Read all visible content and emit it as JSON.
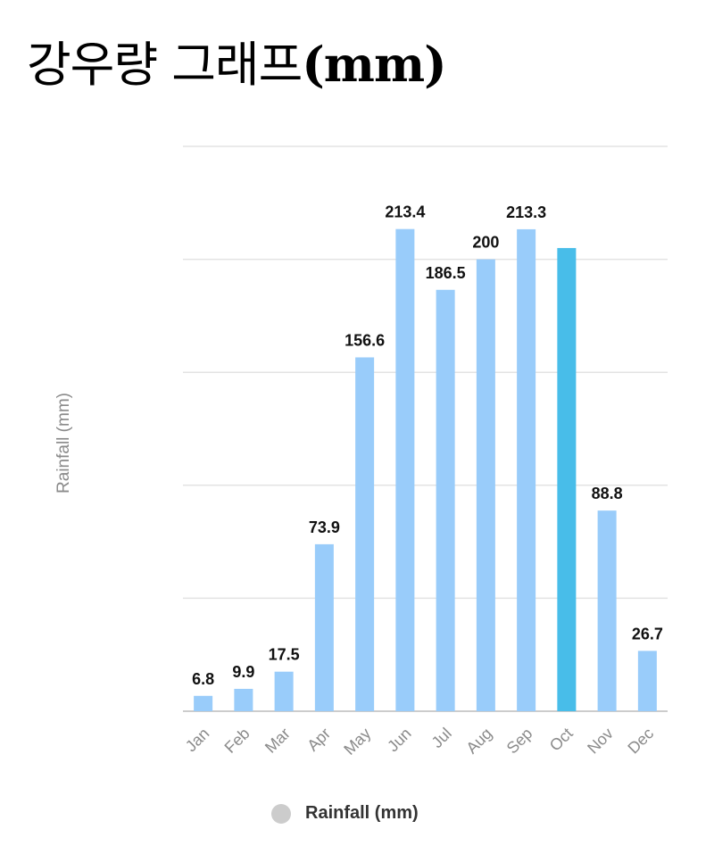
{
  "title": {
    "text": "강우량 그래프",
    "unit": "(mm)"
  },
  "chart_data": {
    "type": "bar",
    "title": "강우량 그래프(mm)",
    "ylabel": "Rainfall (mm)",
    "xlabel": "",
    "categories": [
      "Jan",
      "Feb",
      "Mar",
      "Apr",
      "May",
      "Jun",
      "Jul",
      "Aug",
      "Sep",
      "Oct",
      "Nov",
      "Dec"
    ],
    "series": [
      {
        "name": "Rainfall (mm)",
        "values": [
          6.8,
          9.9,
          17.5,
          73.9,
          156.6,
          213.4,
          186.5,
          200,
          213.3,
          205,
          88.8,
          26.7
        ],
        "labels": [
          "6.8",
          "9.9",
          "17.5",
          "73.9",
          "156.6",
          "213.4",
          "186.5",
          "200",
          "213.3",
          "",
          "88.8",
          "26.7"
        ]
      }
    ],
    "highlight_index": 9,
    "ylim": [
      0,
      250
    ],
    "gridlines": [
      0,
      50,
      100,
      150,
      200,
      250
    ],
    "grid": true,
    "legend_position": "bottom-center",
    "colors": {
      "bar": "#99ccfa",
      "highlight": "#48bde9",
      "grid": "#e3e3e3",
      "axis_line": "#cccccc",
      "tick_label": "#8a8a8a",
      "data_label": "#111111",
      "axis_title": "#8a8a8a"
    }
  },
  "legend": {
    "label": "Rainfall (mm)",
    "swatch_color": "#cccccc"
  }
}
